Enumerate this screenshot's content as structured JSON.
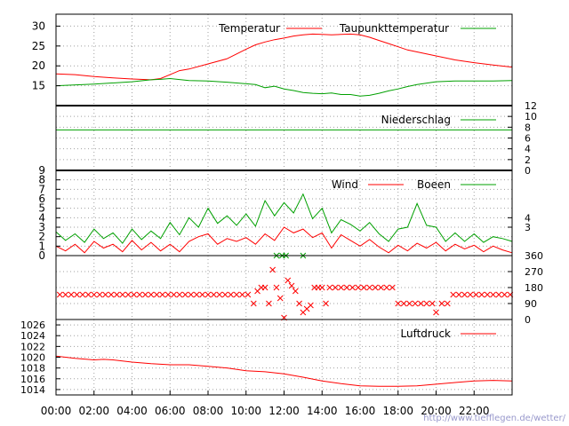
{
  "chart_data": {
    "type": "line",
    "x_ticks": [
      "00:00",
      "02:00",
      "04:00",
      "06:00",
      "08:00",
      "10:00",
      "12:00",
      "14:00",
      "16:00",
      "18:00",
      "20:00",
      "22:00"
    ],
    "colors": {
      "red": "#ff0000",
      "green": "#00a000",
      "grid": "#a0a0a0"
    },
    "footer_url": "http://www.tiefflegen.de/wetter/",
    "panels": [
      {
        "id": "temperature",
        "ylim": [
          10,
          33
        ],
        "left_ticks": [
          15,
          20,
          25,
          30
        ],
        "legend": [
          "Temperatur",
          "Taupunkttemperatur"
        ],
        "series": [
          {
            "name": "Temperatur",
            "color": "#ff0000",
            "x": [
              0,
              1,
              2,
              3,
              4,
              5,
              5.5,
              6,
              6.5,
              7,
              8,
              9,
              9.5,
              10,
              10.5,
              11,
              11.5,
              12,
              12.5,
              13,
              13.5,
              14,
              14.5,
              15,
              15.5,
              16,
              16.5,
              17,
              17.5,
              18,
              18.5,
              19,
              20,
              21,
              22,
              23,
              24
            ],
            "y": [
              18,
              17.8,
              17.3,
              17,
              16.7,
              16.5,
              16.8,
              17.8,
              18.8,
              19.2,
              20.5,
              21.8,
              23,
              24.2,
              25.3,
              26,
              26.6,
              27,
              27.5,
              27.8,
              28,
              27.9,
              27.8,
              27.9,
              28,
              27.8,
              27.2,
              26.4,
              25.6,
              24.8,
              24,
              23.5,
              22.5,
              21.5,
              20.8,
              20.2,
              19.7
            ]
          },
          {
            "name": "Taupunkttemperatur",
            "color": "#00a000",
            "x": [
              0,
              2,
              4,
              5,
              5.5,
              6,
              7,
              8,
              9,
              10,
              10.5,
              11,
              11.5,
              12,
              12.5,
              13,
              13.5,
              14,
              14.5,
              15,
              15.5,
              16,
              16.5,
              17,
              17.5,
              18,
              18.5,
              19,
              20,
              21,
              22,
              23,
              24
            ],
            "y": [
              15,
              15.4,
              16,
              16.5,
              16.6,
              16.8,
              16.3,
              16.2,
              15.9,
              15.5,
              15.3,
              14.5,
              14.9,
              14.2,
              13.8,
              13.3,
              13.1,
              13,
              13.2,
              12.8,
              12.8,
              12.4,
              12.6,
              13.1,
              13.7,
              14.2,
              14.8,
              15.3,
              16,
              16.2,
              16.2,
              16.2,
              16.3
            ]
          }
        ]
      },
      {
        "id": "precipitation",
        "ylim": [
          0,
          12
        ],
        "right_ticks": [
          0,
          2,
          4,
          6,
          8,
          10,
          12
        ],
        "legend": [
          "Niederschlag"
        ],
        "series": [
          {
            "name": "Niederschlag",
            "color": "#00a000",
            "x": [
              0,
              24
            ],
            "y": [
              7.5,
              7.5
            ]
          }
        ]
      },
      {
        "id": "wind",
        "ylim": [
          0,
          9
        ],
        "left_ticks": [
          0,
          1,
          2,
          3,
          4,
          5,
          6,
          7,
          8,
          9
        ],
        "right_ticks": [
          3,
          4
        ],
        "legend": [
          "Wind",
          "Boeen"
        ],
        "series": [
          {
            "name": "Wind",
            "color": "#ff0000",
            "x": [
              0,
              0.5,
              1,
              1.5,
              2,
              2.5,
              3,
              3.5,
              4,
              4.5,
              5,
              5.5,
              6,
              6.5,
              7,
              7.5,
              8,
              8.5,
              9,
              9.5,
              10,
              10.5,
              11,
              11.5,
              12,
              12.5,
              13,
              13.5,
              14,
              14.5,
              15,
              15.5,
              16,
              16.5,
              17,
              17.5,
              18,
              18.5,
              19,
              19.5,
              20,
              20.5,
              21,
              21.5,
              22,
              22.5,
              23,
              23.5,
              24
            ],
            "y": [
              1,
              0.5,
              1.2,
              0.3,
              1.5,
              0.8,
              1.2,
              0.4,
              1.6,
              0.6,
              1.4,
              0.5,
              1.2,
              0.4,
              1.5,
              2,
              2.3,
              1.2,
              1.8,
              1.5,
              1.9,
              1.2,
              2.3,
              1.6,
              3,
              2.4,
              2.8,
              1.9,
              2.4,
              0.8,
              2.2,
              1.6,
              1,
              1.7,
              0.9,
              0.3,
              1.1,
              0.5,
              1.3,
              0.8,
              1.4,
              0.5,
              1.2,
              0.7,
              1.1,
              0.4,
              1,
              0.6,
              0.3
            ]
          },
          {
            "name": "Boeen",
            "color": "#00a000",
            "x": [
              0,
              0.5,
              1,
              1.5,
              2,
              2.5,
              3,
              3.5,
              4,
              4.5,
              5,
              5.5,
              6,
              6.5,
              7,
              7.5,
              8,
              8.5,
              9,
              9.5,
              10,
              10.5,
              11,
              11.5,
              12,
              12.5,
              13,
              13.5,
              14,
              14.5,
              15,
              15.5,
              16,
              16.5,
              17,
              17.5,
              18,
              18.5,
              19,
              19.5,
              20,
              20.5,
              21,
              21.5,
              22,
              22.5,
              23,
              23.5,
              24
            ],
            "y": [
              2.5,
              1.6,
              2.3,
              1.4,
              2.8,
              1.8,
              2.4,
              1.3,
              2.8,
              1.7,
              2.6,
              1.8,
              3.5,
              2.2,
              4,
              3,
              5,
              3.4,
              4.2,
              3.2,
              4.4,
              3.1,
              5.8,
              4.2,
              5.6,
              4.5,
              6.5,
              3.9,
              5,
              2.4,
              3.8,
              3.3,
              2.6,
              3.5,
              2.3,
              1.5,
              2.8,
              3,
              5.5,
              3.2,
              3,
              1.5,
              2.4,
              1.5,
              2.3,
              1.4,
              2,
              1.8,
              1.5
            ]
          }
        ]
      },
      {
        "id": "direction",
        "ylim": [
          0,
          360
        ],
        "right_ticks": [
          0,
          90,
          180,
          270,
          360
        ],
        "series": [
          {
            "name": "",
            "color": "#ff0000",
            "x": [
              0.2,
              0.5,
              0.8,
              1.1,
              1.4,
              1.7,
              2,
              2.3,
              2.6,
              2.9,
              3.2,
              3.5,
              3.8,
              4.1,
              4.4,
              4.7,
              5,
              5.3,
              5.6,
              5.9,
              6.2,
              6.5,
              6.8,
              7.1,
              7.4,
              7.7,
              8,
              8.3,
              8.6,
              8.9,
              9.2,
              9.5,
              9.8,
              10.1,
              10.4,
              10.6,
              10.8,
              11,
              11.2,
              11.4,
              11.6,
              11.8,
              12,
              12.2,
              12.4,
              12.6,
              12.8,
              13,
              13.2,
              13.4,
              13.6,
              13.8,
              14,
              14.2,
              14.4,
              14.7,
              15,
              15.3,
              15.6,
              15.9,
              16.2,
              16.5,
              16.8,
              17.1,
              17.4,
              17.7,
              18,
              18.3,
              18.6,
              18.9,
              19.2,
              19.5,
              19.8,
              20,
              20.3,
              20.6,
              20.9,
              21.2,
              21.5,
              21.8,
              22.1,
              22.4,
              22.7,
              23,
              23.3,
              23.6,
              23.9
            ],
            "y": [
              140,
              140,
              140,
              140,
              140,
              140,
              140,
              140,
              140,
              140,
              140,
              140,
              140,
              140,
              140,
              140,
              140,
              140,
              140,
              140,
              140,
              140,
              140,
              140,
              140,
              140,
              140,
              140,
              140,
              140,
              140,
              140,
              140,
              140,
              90,
              160,
              180,
              180,
              90,
              280,
              180,
              120,
              10,
              220,
              190,
              160,
              90,
              40,
              60,
              80,
              180,
              180,
              180,
              90,
              180,
              180,
              180,
              180,
              180,
              180,
              180,
              180,
              180,
              180,
              180,
              180,
              90,
              90,
              90,
              90,
              90,
              90,
              90,
              40,
              90,
              90,
              140,
              140,
              140,
              140,
              140,
              140,
              140,
              140,
              140,
              140,
              140
            ]
          },
          {
            "name": "",
            "color": "#00a000",
            "x": [
              11.6,
              11.9,
              12.1,
              13
            ],
            "y": [
              360,
              360,
              360,
              360
            ]
          }
        ]
      },
      {
        "id": "pressure",
        "ylim": [
          1013,
          1027
        ],
        "left_ticks": [
          1014,
          1016,
          1018,
          1020,
          1022,
          1024,
          1026
        ],
        "legend": [
          "Luftdruck"
        ],
        "series": [
          {
            "name": "Luftdruck",
            "color": "#ff0000",
            "x": [
              0,
              1,
              2,
              2.5,
              3,
              4,
              5,
              6,
              7,
              8,
              9,
              10,
              11,
              12,
              13,
              14,
              15,
              16,
              17,
              18,
              19,
              20,
              21,
              22,
              23,
              24
            ],
            "y": [
              1020.2,
              1019.8,
              1019.5,
              1019.6,
              1019.5,
              1019.1,
              1018.8,
              1018.6,
              1018.6,
              1018.3,
              1018,
              1017.5,
              1017.3,
              1016.9,
              1016.3,
              1015.6,
              1015.1,
              1014.7,
              1014.6,
              1014.6,
              1014.7,
              1015,
              1015.3,
              1015.6,
              1015.7,
              1015.6
            ]
          }
        ]
      }
    ]
  }
}
